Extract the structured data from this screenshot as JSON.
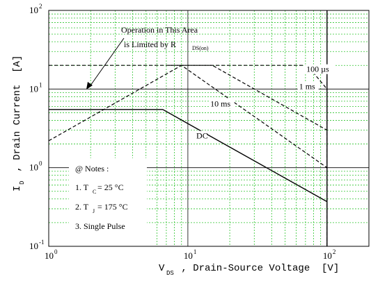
{
  "chart_data": {
    "type": "line",
    "x_scale": "log",
    "y_scale": "log",
    "xlim": [
      1,
      200
    ],
    "ylim": [
      0.1,
      100
    ],
    "x_ticks": [
      {
        "base": "10",
        "exp": "0",
        "value": 1
      },
      {
        "base": "10",
        "exp": "1",
        "value": 10
      },
      {
        "base": "10",
        "exp": "2",
        "value": 100
      }
    ],
    "y_ticks": [
      {
        "base": "10",
        "exp": "-1",
        "value": 0.1
      },
      {
        "base": "10",
        "exp": "0",
        "value": 1
      },
      {
        "base": "10",
        "exp": "1",
        "value": 10
      },
      {
        "base": "10",
        "exp": "2",
        "value": 100
      }
    ],
    "xlabel": {
      "main": "V",
      "sub": "DS",
      "rest": " , Drain-Source Voltage  [V]"
    },
    "ylabel": {
      "main": "I",
      "sub": "D",
      "rest": " , Drain Current  [A]"
    },
    "grid": "on",
    "series": [
      {
        "name": "DC",
        "style": "solid",
        "x": [
          1,
          6.6,
          100
        ],
        "y": [
          5.5,
          5.5,
          0.37
        ]
      },
      {
        "name": "10 ms",
        "style": "dashed",
        "x": [
          1,
          9,
          100
        ],
        "y": [
          2.2,
          20,
          1.0
        ]
      },
      {
        "name": "1 ms",
        "style": "dashed",
        "x": [
          7.3,
          15,
          100
        ],
        "y": [
          20,
          20,
          3.0
        ]
      },
      {
        "name": "100 µs",
        "style": "dashed",
        "x": [
          1,
          72,
          100
        ],
        "y": [
          20,
          20,
          10
        ]
      }
    ],
    "series_labels": [
      {
        "text": "DC",
        "x": 11.5,
        "y": 2.35
      },
      {
        "text": "10 ms",
        "x": 14.5,
        "y": 6.0
      },
      {
        "text": "1 ms",
        "x": 63,
        "y": 10.0
      },
      {
        "text": "100 µs",
        "x": 71,
        "y": 16.5
      }
    ],
    "vertical_lines": [
      {
        "x": 100,
        "y_range": [
          0.1,
          100
        ],
        "style": "solid"
      },
      {
        "x": 100,
        "y_range": [
          0.1,
          20
        ],
        "style": "dashed"
      }
    ],
    "annotation": {
      "line1": "Operation in This Area",
      "line2": "is Limited by R",
      "line2_sub": "DS(on)"
    },
    "notes": {
      "title": "@ Notes :",
      "items": [
        {
          "prefix": "1. T",
          "sub": "C",
          "value": " = 25 °C"
        },
        {
          "prefix": "2. T",
          "sub": "J",
          "value": " = 175 °C"
        },
        {
          "prefix": "3. Single Pulse",
          "sub": "",
          "value": ""
        }
      ]
    }
  }
}
